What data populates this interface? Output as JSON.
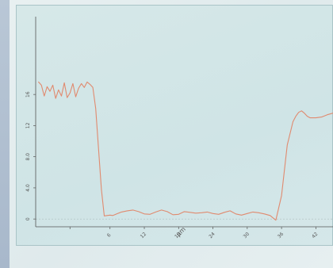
{
  "chart_data": {
    "type": "line",
    "title": "",
    "xlabel": "µm",
    "ylabel": "",
    "xlim": [
      -7,
      45
    ],
    "ylim": [
      -1,
      26
    ],
    "xticks": [
      -1,
      6,
      12,
      18,
      24,
      30,
      36,
      42
    ],
    "xtick_labels": [
      "",
      "6",
      "12",
      "18",
      "24",
      "30",
      "36",
      "42"
    ],
    "yticks": [
      0,
      4,
      8,
      12,
      16
    ],
    "ytick_labels": [
      "0",
      "4.0",
      "8.0",
      "12",
      "16"
    ],
    "series": [
      {
        "color": "#e08a6f",
        "x": [
          -6.5,
          -6.0,
          -5.5,
          -5.0,
          -4.5,
          -4.0,
          -3.5,
          -3.0,
          -2.5,
          -2.0,
          -1.5,
          -1.0,
          -0.5,
          0.0,
          0.5,
          1.0,
          1.5,
          2.0,
          2.5,
          3.0,
          3.5,
          4.0,
          4.5,
          5.0,
          5.5,
          6.0,
          6.5,
          7.0,
          7.5,
          8.0,
          9.0,
          10.0,
          11.0,
          12.0,
          13.0,
          14.0,
          15.0,
          16.0,
          17.0,
          18.0,
          19.0,
          20.0,
          21.0,
          22.0,
          23.0,
          24.0,
          25.0,
          26.0,
          27.0,
          28.0,
          29.0,
          30.0,
          31.0,
          32.0,
          33.0,
          34.0,
          35.0,
          36.0,
          37.0,
          38.0,
          38.5,
          39.0,
          39.5,
          40.0,
          40.5,
          41.0,
          42.0,
          43.0,
          44.0,
          45.0
        ],
        "y": [
          17.6,
          17.2,
          15.8,
          17.0,
          16.4,
          17.2,
          15.5,
          16.6,
          15.8,
          17.5,
          15.6,
          16.2,
          17.4,
          15.7,
          16.8,
          17.4,
          16.9,
          17.6,
          17.3,
          16.9,
          14.2,
          9.0,
          3.8,
          0.4,
          0.45,
          0.5,
          0.45,
          0.6,
          0.75,
          0.9,
          1.05,
          1.15,
          0.95,
          0.65,
          0.6,
          0.9,
          1.15,
          0.95,
          0.55,
          0.6,
          0.95,
          0.85,
          0.75,
          0.8,
          0.9,
          0.7,
          0.6,
          0.85,
          1.05,
          0.65,
          0.5,
          0.7,
          0.9,
          0.8,
          0.65,
          0.45,
          -0.15,
          3.0,
          9.5,
          12.5,
          13.2,
          13.7,
          13.9,
          13.6,
          13.2,
          13.0,
          13.0,
          13.1,
          13.4,
          13.6
        ]
      }
    ]
  }
}
